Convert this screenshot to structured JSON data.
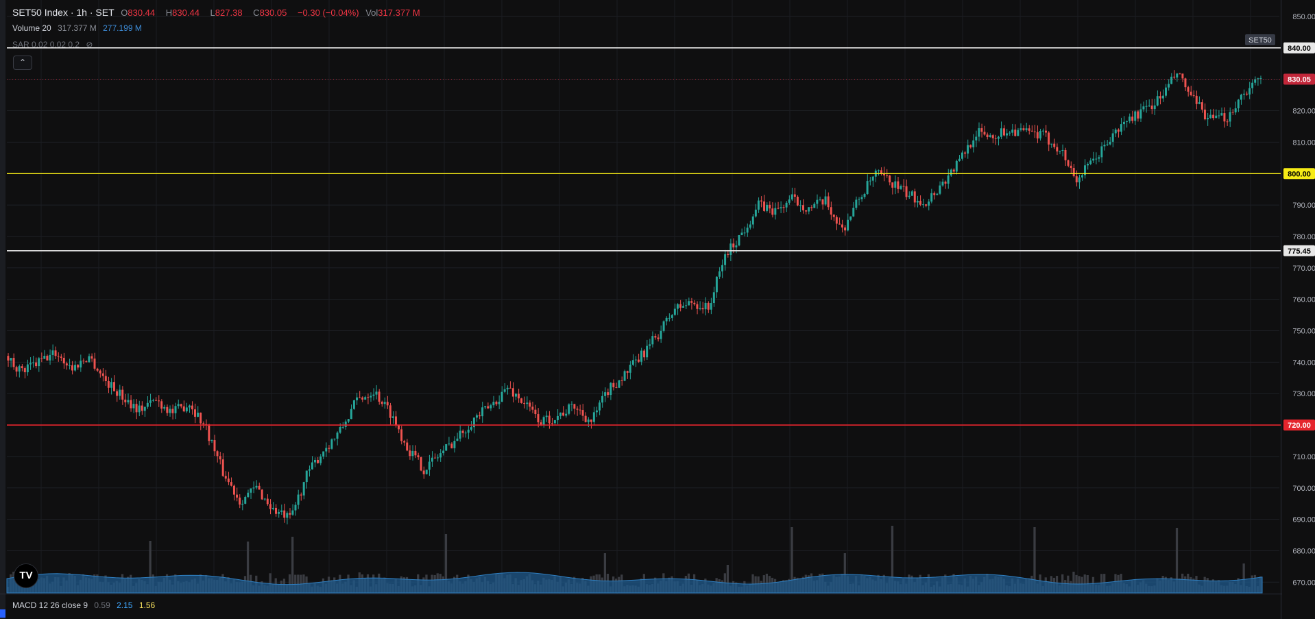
{
  "header": {
    "symbol": "SET50 Index · 1h · SET",
    "o_label": "O",
    "o_value": "830.44",
    "h_label": "H",
    "h_value": "830.44",
    "l_label": "L",
    "l_value": "827.38",
    "c_label": "C",
    "c_value": "830.05",
    "change": "−0.30 (−0.04%)",
    "vol_label": "Vol",
    "vol_value": "317.377 M"
  },
  "volume_indicator": {
    "label": "Volume 20",
    "value": "317.377 M",
    "ma_value": "277.199 M"
  },
  "sar_indicator": {
    "label": "SAR 0.02 0.02 0.2"
  },
  "macd_indicator": {
    "label": "MACD 12 26 close 9",
    "histogram": "0.59",
    "macd": "2.15",
    "signal": "1.56"
  },
  "colors": {
    "background": "#0f0f10",
    "up": "#26a69a",
    "down": "#ef5350",
    "volume_bar": "#3a3c42",
    "volume_ma": "#1f5a8c",
    "line_yellow": "#f6eb16",
    "line_red": "#e5252d",
    "line_white": "#e8e8e8",
    "last_price": "#c2273a"
  },
  "chart_data": {
    "type": "candlestick",
    "title": "SET50 Index · 1h · SET",
    "ylim": [
      665,
      853
    ],
    "y_ticks": [
      850,
      840,
      830,
      820,
      810,
      800,
      790,
      780,
      770,
      760,
      750,
      740,
      730,
      720,
      710,
      700,
      690,
      680,
      670
    ],
    "grid": true,
    "symbol_badge": "SET50",
    "horizontal_lines": [
      {
        "value": 840.0,
        "label": "840.00",
        "color": "#e8e8e8"
      },
      {
        "value": 800.0,
        "label": "800.00",
        "color": "#f6eb16"
      },
      {
        "value": 775.45,
        "label": "775.45",
        "color": "#e8e8e8"
      },
      {
        "value": 720.0,
        "label": "720.00",
        "color": "#e5252d"
      }
    ],
    "last_price": {
      "value": 830.05,
      "label": "830.05"
    },
    "close_path": [
      [
        0,
        742
      ],
      [
        6,
        737
      ],
      [
        12,
        740
      ],
      [
        18,
        743
      ],
      [
        24,
        738
      ],
      [
        30,
        742
      ],
      [
        36,
        734
      ],
      [
        42,
        729
      ],
      [
        48,
        725
      ],
      [
        54,
        728
      ],
      [
        60,
        724
      ],
      [
        66,
        727
      ],
      [
        72,
        719
      ],
      [
        78,
        705
      ],
      [
        84,
        696
      ],
      [
        90,
        700
      ],
      [
        96,
        693
      ],
      [
        102,
        690
      ],
      [
        108,
        704
      ],
      [
        114,
        712
      ],
      [
        120,
        718
      ],
      [
        126,
        728
      ],
      [
        132,
        731
      ],
      [
        138,
        724
      ],
      [
        144,
        713
      ],
      [
        150,
        706
      ],
      [
        156,
        711
      ],
      [
        162,
        716
      ],
      [
        168,
        722
      ],
      [
        174,
        726
      ],
      [
        180,
        732
      ],
      [
        186,
        727
      ],
      [
        192,
        721
      ],
      [
        198,
        723
      ],
      [
        204,
        726
      ],
      [
        210,
        721
      ],
      [
        216,
        731
      ],
      [
        222,
        736
      ],
      [
        228,
        742
      ],
      [
        234,
        749
      ],
      [
        240,
        757
      ],
      [
        246,
        759
      ],
      [
        252,
        757
      ],
      [
        258,
        774
      ],
      [
        264,
        781
      ],
      [
        270,
        790
      ],
      [
        276,
        788
      ],
      [
        282,
        792
      ],
      [
        288,
        789
      ],
      [
        294,
        791
      ],
      [
        300,
        782
      ],
      [
        306,
        792
      ],
      [
        312,
        800
      ],
      [
        318,
        797
      ],
      [
        324,
        793
      ],
      [
        330,
        791
      ],
      [
        336,
        797
      ],
      [
        342,
        804
      ],
      [
        348,
        813
      ],
      [
        354,
        812
      ],
      [
        360,
        814
      ],
      [
        366,
        813
      ],
      [
        372,
        812
      ],
      [
        378,
        808
      ],
      [
        384,
        798
      ],
      [
        390,
        804
      ],
      [
        396,
        811
      ],
      [
        402,
        817
      ],
      [
        408,
        820
      ],
      [
        414,
        824
      ],
      [
        420,
        832
      ],
      [
        426,
        823
      ],
      [
        432,
        817
      ],
      [
        438,
        818
      ],
      [
        444,
        826
      ],
      [
        450,
        830
      ]
    ],
    "candle_count": 450,
    "volume": {
      "baseline_m": 18,
      "ma_m": 21,
      "spikes_m": [
        [
          2,
          31
        ],
        [
          8,
          30
        ],
        [
          22,
          29
        ],
        [
          51,
          76
        ],
        [
          60,
          27
        ],
        [
          86,
          75
        ],
        [
          102,
          82
        ],
        [
          126,
          30
        ],
        [
          157,
          86
        ],
        [
          176,
          27
        ],
        [
          214,
          58
        ],
        [
          258,
          41
        ],
        [
          281,
          96
        ],
        [
          300,
          58
        ],
        [
          317,
          98
        ],
        [
          368,
          96
        ],
        [
          382,
          31
        ],
        [
          419,
          95
        ],
        [
          443,
          43
        ],
        [
          454,
          107
        ]
      ]
    },
    "volume_ylim": [
      0,
      180
    ]
  }
}
